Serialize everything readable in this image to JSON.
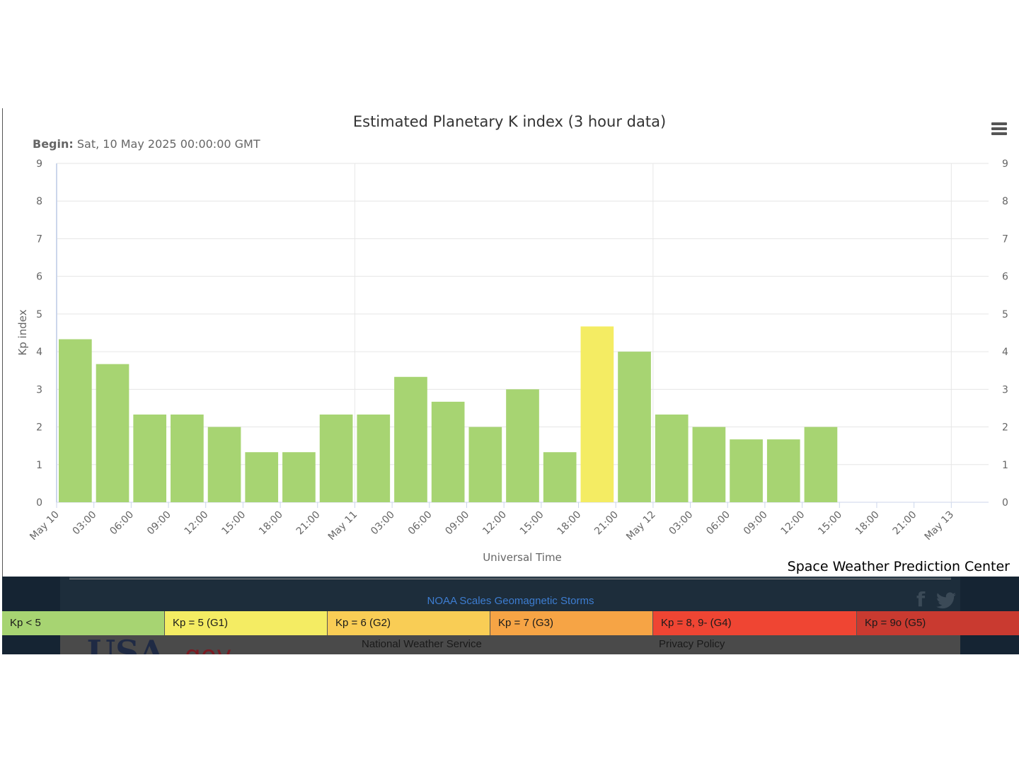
{
  "chart": {
    "title": "Estimated Planetary K index (3 hour data)",
    "subtitle_label": "Begin:",
    "subtitle_value": "Sat, 10 May 2025 00:00:00 GMT",
    "credit": "Space Weather Prediction Center"
  },
  "chart_data": {
    "type": "bar",
    "title": "Estimated Planetary K index (3 hour data)",
    "xlabel": "Universal Time",
    "ylabel": "Kp index",
    "ylim": [
      0,
      9
    ],
    "yticks": [
      "0",
      "1",
      "2",
      "3",
      "4",
      "5",
      "6",
      "7",
      "8",
      "9"
    ],
    "xticks": [
      "May 10",
      "03:00",
      "06:00",
      "09:00",
      "12:00",
      "15:00",
      "18:00",
      "21:00",
      "May 11",
      "03:00",
      "06:00",
      "09:00",
      "12:00",
      "15:00",
      "18:00",
      "21:00",
      "May 12",
      "03:00",
      "06:00",
      "09:00",
      "12:00",
      "15:00",
      "18:00",
      "21:00",
      "May 13"
    ],
    "x": [
      "2025-05-10 00:00",
      "2025-05-10 03:00",
      "2025-05-10 06:00",
      "2025-05-10 09:00",
      "2025-05-10 12:00",
      "2025-05-10 15:00",
      "2025-05-10 18:00",
      "2025-05-10 21:00",
      "2025-05-11 00:00",
      "2025-05-11 03:00",
      "2025-05-11 06:00",
      "2025-05-11 09:00",
      "2025-05-11 12:00",
      "2025-05-11 15:00",
      "2025-05-11 18:00",
      "2025-05-11 21:00",
      "2025-05-12 00:00",
      "2025-05-12 03:00",
      "2025-05-12 06:00",
      "2025-05-12 09:00",
      "2025-05-12 12:00"
    ],
    "values": [
      4.33,
      3.67,
      2.33,
      2.33,
      2.0,
      1.33,
      1.33,
      2.33,
      2.33,
      3.33,
      2.67,
      2.0,
      3.0,
      1.33,
      4.67,
      4.0,
      2.33,
      2.0,
      1.67,
      1.67,
      2.0
    ],
    "grid": true,
    "colors": {
      "kp_lt_5": "#a7d472",
      "kp_5": "#f4ec63",
      "kp_6": "#f9cd55",
      "kp_7": "#f6a445",
      "kp_8_9m": "#ef4533",
      "kp_9o": "#c93a30"
    }
  },
  "footer": {
    "scales_link": "NOAA Scales Geomagnetic Storms",
    "nws_link": "National Weather Service",
    "privacy_link": "Privacy Policy",
    "logo_text": "USA.gov",
    "social_icons": [
      "facebook-icon",
      "twitter-icon"
    ]
  },
  "legend": [
    {
      "label": "Kp < 5",
      "color": "#a7d472"
    },
    {
      "label": "Kp = 5 (G1)",
      "color": "#f4ec63"
    },
    {
      "label": "Kp = 6 (G2)",
      "color": "#f9cd55"
    },
    {
      "label": "Kp = 7 (G3)",
      "color": "#f6a445"
    },
    {
      "label": "Kp = 8, 9- (G4)",
      "color": "#ef4533"
    },
    {
      "label": "Kp = 9o (G5)",
      "color": "#c93a30"
    }
  ]
}
